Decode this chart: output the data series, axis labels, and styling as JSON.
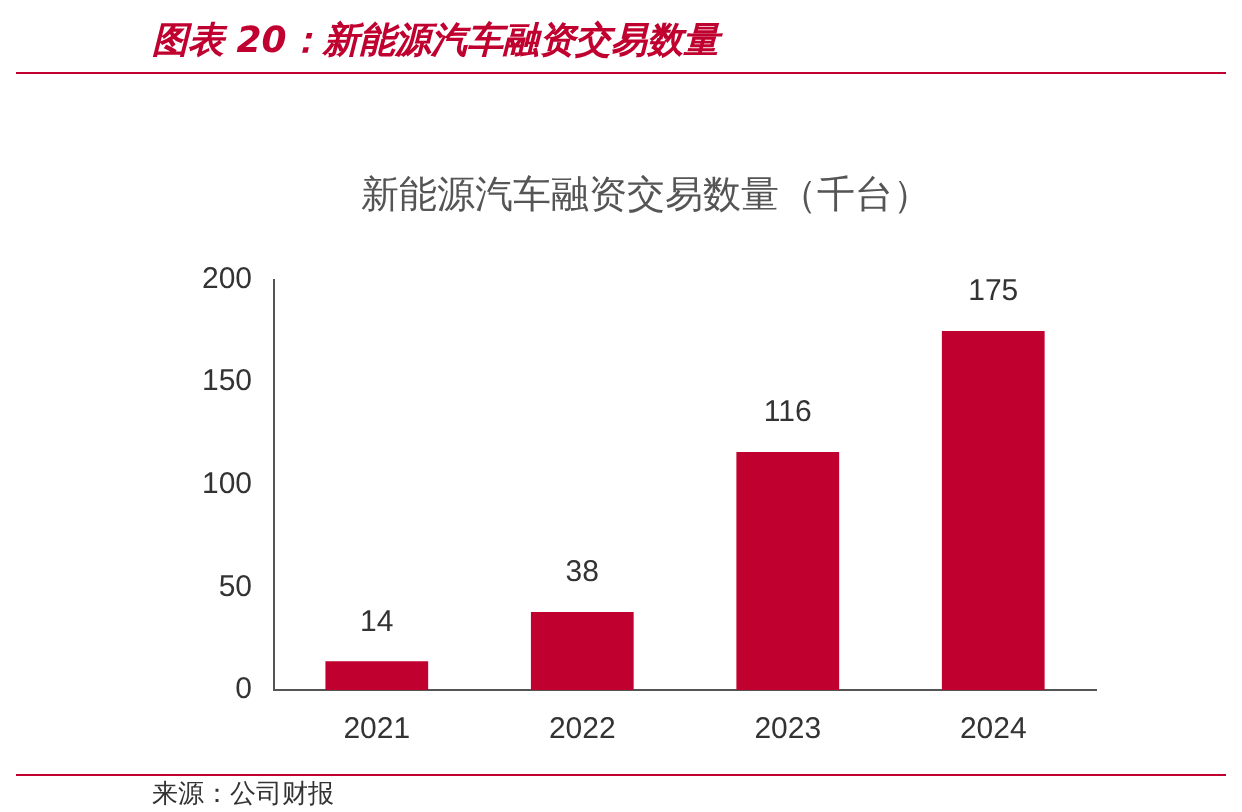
{
  "chart_data": {
    "type": "bar",
    "title": "图表 20：新能源汽车融资交易数量",
    "subtitle": "新能源汽车融资交易数量（千台）",
    "categories": [
      "2021",
      "2022",
      "2023",
      "2024"
    ],
    "values": [
      14,
      38,
      116,
      175
    ],
    "color": "#c0002f",
    "ylim": [
      0,
      200
    ],
    "yticks": [
      0,
      50,
      100,
      150,
      200
    ],
    "grid": false,
    "data_labels": true,
    "legend": false,
    "annotations": [
      "来源：公司财报"
    ]
  }
}
